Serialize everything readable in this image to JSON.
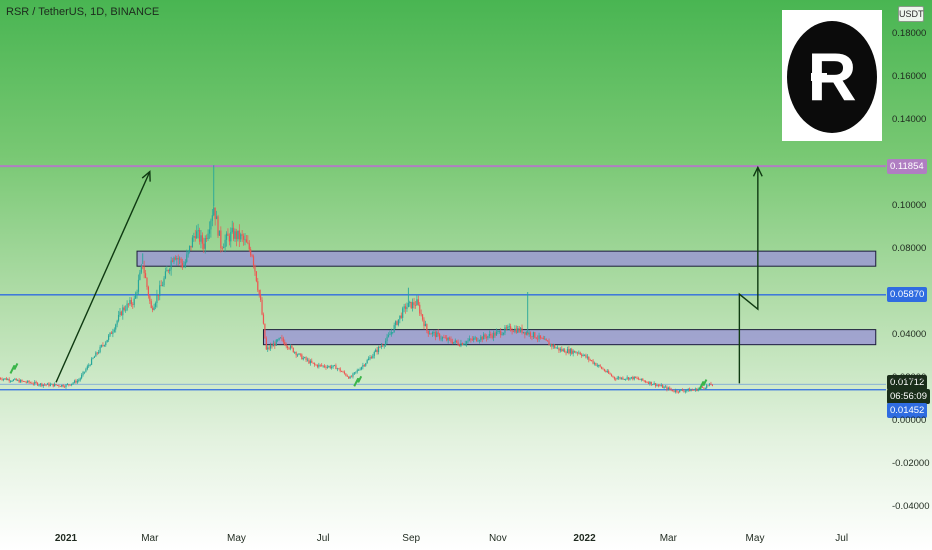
{
  "header": {
    "symbol_title": "RSR / TetherUS, 1D, BINANCE",
    "currency_badge": "USDT"
  },
  "logo": {
    "letter": "R",
    "icon": "reserve-rights-logo-icon"
  },
  "price_tags": {
    "resistance_top": "0.11854",
    "blue_mid": "0.05870",
    "last_price": "0.01712",
    "countdown": "06:56:09",
    "blue_low": "0.01452"
  },
  "colors": {
    "purple_line": "#b07ec2",
    "blue_line": "#2f6ce1",
    "zone_fill": "#9b99d2",
    "arrow": "#0f3a12",
    "candle_up": "#26a69a",
    "candle_down": "#ef5350",
    "background_top": "#49b552"
  },
  "chart_data": {
    "type": "candlestick",
    "title": "RSR / TetherUS, 1D, BINANCE",
    "xlabel": "",
    "ylabel": "",
    "ylim": [
      -0.045,
      0.19
    ],
    "y_ticks": [
      "0.18000",
      "0.16000",
      "0.14000",
      "0.10000",
      "0.08000",
      "0.04000",
      "0.02000",
      "0.00000",
      "-0.02000",
      "-0.04000"
    ],
    "y_tick_values": [
      0.18,
      0.16,
      0.14,
      0.1,
      0.08,
      0.04,
      0.02,
      0.0,
      -0.02,
      -0.04
    ],
    "x_ticks": [
      "2021",
      "Mar",
      "May",
      "Jul",
      "Sep",
      "Nov",
      "2022",
      "Mar",
      "May",
      "Jul"
    ],
    "x_tick_dates": [
      "2021-01-01",
      "2021-03-01",
      "2021-05-01",
      "2021-07-01",
      "2021-09-01",
      "2021-11-01",
      "2022-01-01",
      "2022-03-01",
      "2022-05-01",
      "2022-07-01"
    ],
    "x_tick_bold": [
      true,
      false,
      false,
      false,
      false,
      false,
      true,
      false,
      false,
      false
    ],
    "price_path": [
      [
        "2020-11-15",
        0.02
      ],
      [
        "2020-12-15",
        0.017
      ],
      [
        "2021-01-01",
        0.0165
      ],
      [
        "2021-01-10",
        0.019
      ],
      [
        "2021-01-20",
        0.029
      ],
      [
        "2021-02-01",
        0.04
      ],
      [
        "2021-02-10",
        0.052
      ],
      [
        "2021-02-18",
        0.056
      ],
      [
        "2021-02-24",
        0.073
      ],
      [
        "2021-03-02",
        0.052
      ],
      [
        "2021-03-10",
        0.064
      ],
      [
        "2021-03-18",
        0.078
      ],
      [
        "2021-03-25",
        0.072
      ],
      [
        "2021-04-02",
        0.088
      ],
      [
        "2021-04-08",
        0.082
      ],
      [
        "2021-04-15",
        0.1
      ],
      [
        "2021-04-20",
        0.082
      ],
      [
        "2021-04-28",
        0.087
      ],
      [
        "2021-05-05",
        0.085
      ],
      [
        "2021-05-12",
        0.078
      ],
      [
        "2021-05-18",
        0.055
      ],
      [
        "2021-05-22",
        0.033
      ],
      [
        "2021-06-01",
        0.038
      ],
      [
        "2021-06-15",
        0.03
      ],
      [
        "2021-06-25",
        0.026
      ],
      [
        "2021-07-10",
        0.025
      ],
      [
        "2021-07-20",
        0.02
      ],
      [
        "2021-08-01",
        0.028
      ],
      [
        "2021-08-15",
        0.038
      ],
      [
        "2021-08-28",
        0.053
      ],
      [
        "2021-09-05",
        0.055
      ],
      [
        "2021-09-12",
        0.042
      ],
      [
        "2021-09-25",
        0.038
      ],
      [
        "2021-10-05",
        0.036
      ],
      [
        "2021-10-15",
        0.038
      ],
      [
        "2021-10-28",
        0.04
      ],
      [
        "2021-11-10",
        0.043
      ],
      [
        "2021-11-18",
        0.042
      ],
      [
        "2021-11-26",
        0.04
      ],
      [
        "2021-12-04",
        0.037
      ],
      [
        "2021-12-15",
        0.033
      ],
      [
        "2021-12-28",
        0.032
      ],
      [
        "2022-01-10",
        0.026
      ],
      [
        "2022-01-22",
        0.02
      ],
      [
        "2022-02-05",
        0.02
      ],
      [
        "2022-02-20",
        0.017
      ],
      [
        "2022-03-05",
        0.014
      ],
      [
        "2022-03-20",
        0.0145
      ],
      [
        "2022-04-01",
        0.0171
      ]
    ],
    "spikes_high": [
      [
        "2021-02-24",
        0.078
      ],
      [
        "2021-04-15",
        0.119
      ],
      [
        "2021-08-30",
        0.062
      ],
      [
        "2021-11-22",
        0.06
      ]
    ],
    "support_line_y": 0.01452,
    "blue_line_y": 0.0587,
    "purple_line_y": 0.11854,
    "zones": [
      {
        "x_start": "2021-02-20",
        "x_end": "2022-07-25",
        "y_low": 0.072,
        "y_high": 0.079
      },
      {
        "x_start": "2021-05-20",
        "x_end": "2022-07-25",
        "y_low": 0.0355,
        "y_high": 0.0425
      }
    ],
    "arrows": [
      {
        "from": [
          "2020-12-25",
          0.018
        ],
        "to": [
          "2021-03-01",
          0.116
        ]
      },
      {
        "from": [
          "2022-04-20",
          0.0175
        ],
        "via": [
          [
            "2022-04-20",
            0.059
          ],
          [
            "2022-05-03",
            0.052
          ]
        ],
        "to": [
          "2022-05-03",
          0.118
        ]
      }
    ],
    "markers_up": [
      [
        "2020-11-25",
        0.024
      ],
      [
        "2021-07-25",
        0.018
      ],
      [
        "2022-03-25",
        0.0165
      ]
    ]
  }
}
